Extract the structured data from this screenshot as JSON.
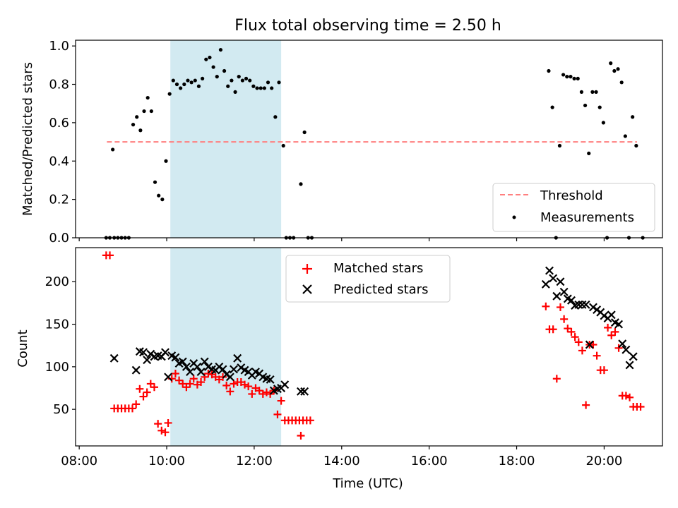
{
  "title": "Flux total observing time = 2.50 h",
  "colors": {
    "threshold": "#ff7f7f",
    "measurements": "#000000",
    "matched": "#ff0000",
    "predicted": "#000000",
    "span": "#add8e6"
  },
  "chart_data": [
    {
      "type": "scatter",
      "name": "ratio",
      "ylabel": "Matched/Predicted stars",
      "xlabel": "",
      "ylim": [
        0,
        1.03
      ],
      "xlim": [
        "07:55",
        "21:20"
      ],
      "yticks": [
        "0.0",
        "0.2",
        "0.4",
        "0.6",
        "0.8",
        "1.0"
      ],
      "grid": false,
      "legend_position": "bottom-right",
      "highlight_span": [
        "10:05",
        "12:37"
      ],
      "threshold": {
        "name": "Threshold",
        "value": 0.5,
        "x_range": [
          "08:38",
          "20:45"
        ]
      },
      "series": [
        {
          "name": "Measurements",
          "style": "dot",
          "points": [
            [
              "08:37",
              0
            ],
            [
              "08:42",
              0
            ],
            [
              "08:48",
              0
            ],
            [
              "08:53",
              0
            ],
            [
              "08:58",
              0
            ],
            [
              "09:03",
              0
            ],
            [
              "09:08",
              0
            ],
            [
              "08:46",
              0.46
            ],
            [
              "09:14",
              0.59
            ],
            [
              "09:19",
              0.63
            ],
            [
              "09:24",
              0.56
            ],
            [
              "09:29",
              0.66
            ],
            [
              "09:34",
              0.73
            ],
            [
              "09:39",
              0.66
            ],
            [
              "09:44",
              0.29
            ],
            [
              "09:49",
              0.22
            ],
            [
              "09:54",
              0.2
            ],
            [
              "09:59",
              0.4
            ],
            [
              "10:04",
              0.75
            ],
            [
              "10:09",
              0.82
            ],
            [
              "10:14",
              0.8
            ],
            [
              "10:19",
              0.78
            ],
            [
              "10:24",
              0.8
            ],
            [
              "10:29",
              0.82
            ],
            [
              "10:34",
              0.81
            ],
            [
              "10:39",
              0.82
            ],
            [
              "10:44",
              0.79
            ],
            [
              "10:49",
              0.83
            ],
            [
              "10:54",
              0.93
            ],
            [
              "10:59",
              0.94
            ],
            [
              "11:04",
              0.89
            ],
            [
              "11:09",
              0.84
            ],
            [
              "11:14",
              0.98
            ],
            [
              "11:19",
              0.87
            ],
            [
              "11:24",
              0.79
            ],
            [
              "11:29",
              0.82
            ],
            [
              "11:34",
              0.76
            ],
            [
              "11:39",
              0.84
            ],
            [
              "11:44",
              0.82
            ],
            [
              "11:49",
              0.83
            ],
            [
              "11:54",
              0.82
            ],
            [
              "11:59",
              0.79
            ],
            [
              "12:04",
              0.78
            ],
            [
              "12:09",
              0.78
            ],
            [
              "12:14",
              0.78
            ],
            [
              "12:19",
              0.81
            ],
            [
              "12:24",
              0.78
            ],
            [
              "12:29",
              0.63
            ],
            [
              "12:34",
              0.81
            ],
            [
              "12:40",
              0.48
            ],
            [
              "12:44",
              0
            ],
            [
              "12:49",
              0
            ],
            [
              "12:54",
              0
            ],
            [
              "13:04",
              0.28
            ],
            [
              "13:09",
              0.55
            ],
            [
              "13:14",
              0
            ],
            [
              "13:19",
              0
            ],
            [
              "18:44",
              0.87
            ],
            [
              "18:49",
              0.68
            ],
            [
              "18:54",
              0
            ],
            [
              "18:59",
              0.48
            ],
            [
              "19:04",
              0.85
            ],
            [
              "19:09",
              0.84
            ],
            [
              "19:14",
              0.84
            ],
            [
              "19:19",
              0.83
            ],
            [
              "19:24",
              0.83
            ],
            [
              "19:29",
              0.76
            ],
            [
              "19:34",
              0.69
            ],
            [
              "19:39",
              0.44
            ],
            [
              "19:44",
              0.76
            ],
            [
              "19:49",
              0.76
            ],
            [
              "19:54",
              0.68
            ],
            [
              "19:59",
              0.6
            ],
            [
              "20:04",
              0
            ],
            [
              "20:09",
              0.91
            ],
            [
              "20:14",
              0.87
            ],
            [
              "20:19",
              0.88
            ],
            [
              "20:24",
              0.81
            ],
            [
              "20:29",
              0.53
            ],
            [
              "20:34",
              0
            ],
            [
              "20:39",
              0.63
            ],
            [
              "20:44",
              0.48
            ],
            [
              "20:53",
              0
            ]
          ]
        }
      ]
    },
    {
      "type": "scatter",
      "name": "counts",
      "ylabel": "Count",
      "xlabel": "Time (UTC)",
      "ylim": [
        7,
        240
      ],
      "xlim": [
        "07:55",
        "21:20"
      ],
      "yticks": [
        "50",
        "100",
        "150",
        "200"
      ],
      "xticks": [
        "08:00",
        "10:00",
        "12:00",
        "14:00",
        "16:00",
        "18:00",
        "20:00"
      ],
      "grid": false,
      "legend_position": "top-center",
      "highlight_span": [
        "10:05",
        "12:37"
      ],
      "series": [
        {
          "name": "Matched stars",
          "style": "plus",
          "points": [
            [
              "08:37",
              231
            ],
            [
              "08:42",
              231
            ],
            [
              "08:48",
              51
            ],
            [
              "08:53",
              51
            ],
            [
              "08:58",
              51
            ],
            [
              "09:03",
              51
            ],
            [
              "09:08",
              51
            ],
            [
              "09:13",
              51
            ],
            [
              "09:18",
              56
            ],
            [
              "09:23",
              74
            ],
            [
              "09:28",
              65
            ],
            [
              "09:33",
              70
            ],
            [
              "09:38",
              80
            ],
            [
              "09:43",
              76
            ],
            [
              "09:48",
              33
            ],
            [
              "09:53",
              25
            ],
            [
              "09:58",
              23
            ],
            [
              "10:02",
              34
            ],
            [
              "10:07",
              86
            ],
            [
              "10:12",
              92
            ],
            [
              "10:17",
              84
            ],
            [
              "10:22",
              80
            ],
            [
              "10:27",
              76
            ],
            [
              "10:32",
              80
            ],
            [
              "10:37",
              86
            ],
            [
              "10:42",
              79
            ],
            [
              "10:47",
              82
            ],
            [
              "10:52",
              88
            ],
            [
              "10:57",
              92
            ],
            [
              "11:02",
              91
            ],
            [
              "11:07",
              88
            ],
            [
              "11:12",
              85
            ],
            [
              "11:17",
              88
            ],
            [
              "11:22",
              78
            ],
            [
              "11:27",
              71
            ],
            [
              "11:32",
              80
            ],
            [
              "11:37",
              82
            ],
            [
              "11:42",
              82
            ],
            [
              "11:47",
              79
            ],
            [
              "11:52",
              77
            ],
            [
              "11:57",
              68
            ],
            [
              "12:02",
              75
            ],
            [
              "12:07",
              72
            ],
            [
              "12:12",
              68
            ],
            [
              "12:17",
              70
            ],
            [
              "12:22",
              68
            ],
            [
              "12:27",
              72
            ],
            [
              "12:32",
              44
            ],
            [
              "12:37",
              60
            ],
            [
              "12:42",
              37
            ],
            [
              "12:47",
              37
            ],
            [
              "12:52",
              37
            ],
            [
              "12:57",
              37
            ],
            [
              "13:02",
              37
            ],
            [
              "13:07",
              37
            ],
            [
              "13:12",
              37
            ],
            [
              "13:17",
              37
            ],
            [
              "13:04",
              19
            ],
            [
              "18:40",
              171
            ],
            [
              "18:45",
              144
            ],
            [
              "18:50",
              144
            ],
            [
              "18:55",
              86
            ],
            [
              "19:00",
              170
            ],
            [
              "19:05",
              156
            ],
            [
              "19:10",
              145
            ],
            [
              "19:15",
              141
            ],
            [
              "19:20",
              135
            ],
            [
              "19:25",
              129
            ],
            [
              "19:30",
              119
            ],
            [
              "19:35",
              55
            ],
            [
              "19:40",
              126
            ],
            [
              "19:45",
              126
            ],
            [
              "19:50",
              113
            ],
            [
              "19:55",
              96
            ],
            [
              "20:00",
              96
            ],
            [
              "20:05",
              146
            ],
            [
              "20:10",
              137
            ],
            [
              "20:15",
              141
            ],
            [
              "20:20",
              122
            ],
            [
              "20:25",
              66
            ],
            [
              "20:30",
              66
            ],
            [
              "20:35",
              64
            ],
            [
              "20:40",
              53
            ],
            [
              "20:45",
              53
            ],
            [
              "20:50",
              53
            ]
          ]
        },
        {
          "name": "Predicted stars",
          "style": "x",
          "points": [
            [
              "08:48",
              110
            ],
            [
              "09:18",
              96
            ],
            [
              "09:23",
              118
            ],
            [
              "09:28",
              117
            ],
            [
              "09:33",
              108
            ],
            [
              "09:38",
              115
            ],
            [
              "09:43",
              112
            ],
            [
              "09:48",
              113
            ],
            [
              "09:53",
              112
            ],
            [
              "09:58",
              117
            ],
            [
              "10:02",
              88
            ],
            [
              "10:07",
              113
            ],
            [
              "10:12",
              111
            ],
            [
              "10:17",
              104
            ],
            [
              "10:22",
              106
            ],
            [
              "10:27",
              100
            ],
            [
              "10:32",
              94
            ],
            [
              "10:37",
              104
            ],
            [
              "10:42",
              100
            ],
            [
              "10:47",
              94
            ],
            [
              "10:52",
              106
            ],
            [
              "10:57",
              100
            ],
            [
              "11:02",
              97
            ],
            [
              "11:07",
              96
            ],
            [
              "11:12",
              100
            ],
            [
              "11:17",
              97
            ],
            [
              "11:22",
              91
            ],
            [
              "11:27",
              88
            ],
            [
              "11:32",
              97
            ],
            [
              "11:37",
              110
            ],
            [
              "11:42",
              99
            ],
            [
              "11:47",
              96
            ],
            [
              "11:52",
              94
            ],
            [
              "11:57",
              90
            ],
            [
              "12:02",
              94
            ],
            [
              "12:07",
              92
            ],
            [
              "12:12",
              88
            ],
            [
              "12:17",
              86
            ],
            [
              "12:22",
              85
            ],
            [
              "12:27",
              72
            ],
            [
              "12:32",
              74
            ],
            [
              "12:37",
              75
            ],
            [
              "12:42",
              79
            ],
            [
              "13:04",
              71
            ],
            [
              "13:09",
              71
            ],
            [
              "18:40",
              197
            ],
            [
              "18:45",
              213
            ],
            [
              "18:50",
              204
            ],
            [
              "18:55",
              183
            ],
            [
              "19:00",
              200
            ],
            [
              "19:05",
              188
            ],
            [
              "19:10",
              180
            ],
            [
              "19:15",
              178
            ],
            [
              "19:20",
              172
            ],
            [
              "19:25",
              173
            ],
            [
              "19:30",
              173
            ],
            [
              "19:35",
              173
            ],
            [
              "19:40",
              126
            ],
            [
              "19:45",
              170
            ],
            [
              "19:50",
              167
            ],
            [
              "19:55",
              164
            ],
            [
              "20:00",
              160
            ],
            [
              "20:05",
              157
            ],
            [
              "20:10",
              161
            ],
            [
              "20:15",
              152
            ],
            [
              "20:20",
              150
            ],
            [
              "20:25",
              127
            ],
            [
              "20:30",
              120
            ],
            [
              "20:35",
              102
            ],
            [
              "20:40",
              112
            ]
          ]
        }
      ]
    }
  ]
}
